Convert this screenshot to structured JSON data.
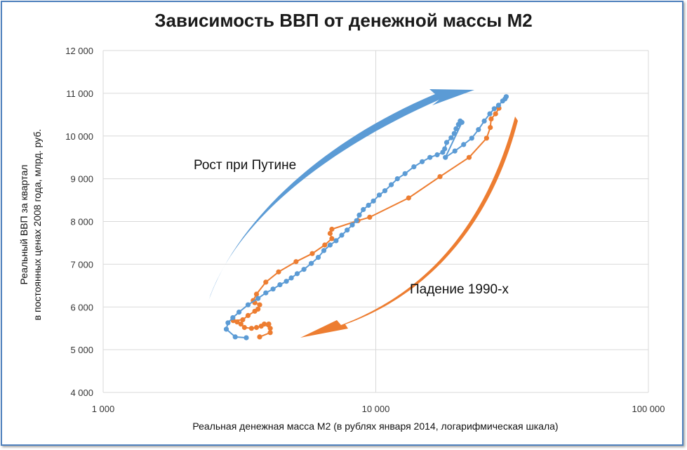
{
  "chart_data": {
    "type": "scatter",
    "title": "Зависимость ВВП от денежной массы М2",
    "xlabel": "Реальная денежная масса М2 (в рублях января 2014, логарифмическая шкала)",
    "ylabel": [
      "Реальный ВВП за квартал",
      "в постоянных ценах 2008 года, млрд. руб."
    ],
    "x_scale": "log",
    "xlim": [
      1000,
      100000
    ],
    "ylim": [
      4000,
      12000
    ],
    "x_ticks": [
      1000,
      10000,
      100000
    ],
    "x_tick_labels": [
      "1 000",
      "10 000",
      "100 000"
    ],
    "y_ticks": [
      4000,
      5000,
      6000,
      7000,
      8000,
      9000,
      10000,
      11000,
      12000
    ],
    "y_tick_labels": [
      "4 000",
      "5 000",
      "6 000",
      "7 000",
      "8 000",
      "9 000",
      "10 000",
      "11 000",
      "12 000"
    ],
    "grid": true,
    "series": [
      {
        "color": "#ed7d31",
        "points": [
          [
            3750,
            5300
          ],
          [
            4100,
            5400
          ],
          [
            4100,
            5500
          ],
          [
            3900,
            5600
          ],
          [
            4050,
            5600
          ],
          [
            3800,
            5550
          ],
          [
            3650,
            5520
          ],
          [
            3500,
            5500
          ],
          [
            3300,
            5520
          ],
          [
            3200,
            5600
          ],
          [
            3100,
            5650
          ],
          [
            3000,
            5680
          ],
          [
            3250,
            5700
          ],
          [
            3400,
            5800
          ],
          [
            3600,
            5900
          ],
          [
            3700,
            5950
          ],
          [
            3750,
            6050
          ],
          [
            3600,
            6100
          ],
          [
            3550,
            6150
          ],
          [
            3650,
            6300
          ],
          [
            3950,
            6580
          ],
          [
            4400,
            6820
          ],
          [
            5100,
            7060
          ],
          [
            5850,
            7250
          ],
          [
            6500,
            7450
          ],
          [
            6900,
            7600
          ],
          [
            6800,
            7720
          ],
          [
            6900,
            7820
          ],
          [
            8600,
            8020
          ],
          [
            9500,
            8100
          ],
          [
            13200,
            8550
          ],
          [
            17200,
            9050
          ],
          [
            22000,
            9500
          ],
          [
            25500,
            9950
          ],
          [
            26300,
            10200
          ],
          [
            26500,
            10400
          ],
          [
            27500,
            10520
          ],
          [
            28300,
            10650
          ]
        ]
      },
      {
        "color": "#5b9bd5",
        "points": [
          [
            3350,
            5280
          ],
          [
            3050,
            5300
          ],
          [
            2830,
            5480
          ],
          [
            2870,
            5630
          ],
          [
            2990,
            5750
          ],
          [
            3150,
            5880
          ],
          [
            3400,
            6050
          ],
          [
            3700,
            6200
          ],
          [
            3950,
            6330
          ],
          [
            4200,
            6420
          ],
          [
            4450,
            6520
          ],
          [
            4700,
            6600
          ],
          [
            4900,
            6680
          ],
          [
            5150,
            6780
          ],
          [
            5450,
            6880
          ],
          [
            5800,
            7020
          ],
          [
            6150,
            7160
          ],
          [
            6450,
            7320
          ],
          [
            6800,
            7450
          ],
          [
            7150,
            7550
          ],
          [
            7500,
            7680
          ],
          [
            7850,
            7800
          ],
          [
            8200,
            7920
          ],
          [
            8500,
            8020
          ],
          [
            8700,
            8150
          ],
          [
            9000,
            8280
          ],
          [
            9400,
            8380
          ],
          [
            9800,
            8480
          ],
          [
            10300,
            8620
          ],
          [
            10800,
            8720
          ],
          [
            11400,
            8860
          ],
          [
            12000,
            9000
          ],
          [
            12800,
            9120
          ],
          [
            13800,
            9280
          ],
          [
            14800,
            9400
          ],
          [
            15800,
            9500
          ],
          [
            16800,
            9560
          ],
          [
            17600,
            9620
          ],
          [
            17900,
            9700
          ],
          [
            18200,
            9850
          ],
          [
            18900,
            9960
          ],
          [
            19400,
            10060
          ],
          [
            19700,
            10170
          ],
          [
            20100,
            10270
          ],
          [
            20400,
            10350
          ],
          [
            20700,
            10320
          ],
          [
            18000,
            9500
          ],
          [
            19500,
            9650
          ],
          [
            21000,
            9800
          ],
          [
            22500,
            9950
          ],
          [
            23800,
            10150
          ],
          [
            25000,
            10350
          ],
          [
            26200,
            10520
          ],
          [
            27200,
            10640
          ],
          [
            28200,
            10720
          ],
          [
            29200,
            10820
          ],
          [
            29800,
            10870
          ],
          [
            30100,
            10920
          ]
        ]
      }
    ],
    "annotations": [
      {
        "text": "Рост при Путине",
        "color": "#5b9bd5"
      },
      {
        "text": "Падение 1990-х",
        "color": "#ed7d31"
      }
    ]
  }
}
